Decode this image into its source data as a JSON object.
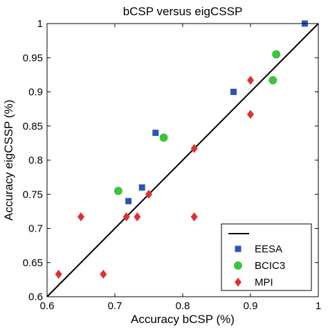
{
  "chart_data": {
    "type": "scatter",
    "title": "bCSP versus eigCSSP",
    "xlabel": "Accuracy bCSP (%)",
    "ylabel": "Accuracy eigCSSP (%)",
    "xlim": [
      0.6,
      1
    ],
    "ylim": [
      0.6,
      1
    ],
    "xticks": [
      "0.6",
      "0.7",
      "0.8",
      "0.9",
      "1"
    ],
    "yticks": [
      "0.6",
      "0.65",
      "0.7",
      "0.75",
      "0.8",
      "0.85",
      "0.9",
      "0.95",
      "1"
    ],
    "reference_line": {
      "from": [
        0.6,
        0.6
      ],
      "to": [
        1,
        1
      ],
      "color": "#000000"
    },
    "legend_position": "bottom-right",
    "series": [
      {
        "name": "EESA",
        "marker": "square",
        "color": "#2b55b5",
        "points": [
          [
            0.98,
            1.0
          ],
          [
            0.875,
            0.9
          ],
          [
            0.76,
            0.84
          ],
          [
            0.74,
            0.76
          ],
          [
            0.72,
            0.74
          ]
        ]
      },
      {
        "name": "BCIC3",
        "marker": "circle",
        "color": "#3cc43c",
        "points": [
          [
            0.938,
            0.955
          ],
          [
            0.933,
            0.917
          ],
          [
            0.772,
            0.833
          ],
          [
            0.705,
            0.755
          ]
        ]
      },
      {
        "name": "MPI",
        "marker": "diamond",
        "color": "#e02f2f",
        "points": [
          [
            0.9,
            0.917
          ],
          [
            0.9,
            0.867
          ],
          [
            0.817,
            0.817
          ],
          [
            0.75,
            0.75
          ],
          [
            0.717,
            0.717
          ],
          [
            0.733,
            0.717
          ],
          [
            0.65,
            0.717
          ],
          [
            0.817,
            0.717
          ],
          [
            0.617,
            0.633
          ],
          [
            0.683,
            0.633
          ]
        ]
      }
    ]
  }
}
